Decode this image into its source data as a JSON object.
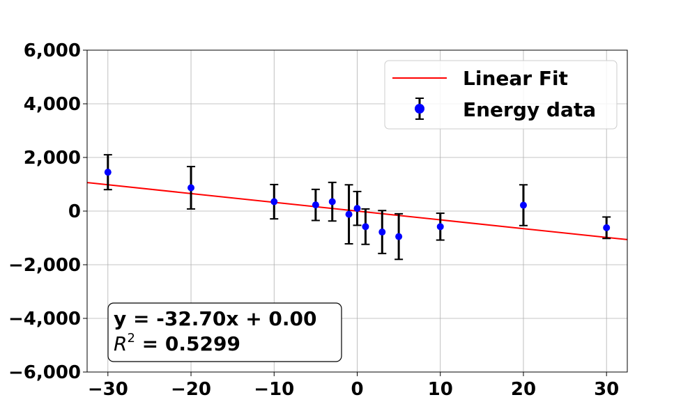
{
  "chart_data": {
    "type": "scatter",
    "title": "",
    "xlabel": "",
    "ylabel": "",
    "xlim": [
      -32.5,
      32.5
    ],
    "ylim": [
      -6000,
      6000
    ],
    "x_ticks": [
      -30,
      -20,
      -10,
      0,
      10,
      20,
      30
    ],
    "x_tick_labels": [
      "−30",
      "−20",
      "−10",
      "0",
      "10",
      "20",
      "30"
    ],
    "y_ticks": [
      -6000,
      -4000,
      -2000,
      0,
      2000,
      4000,
      6000
    ],
    "y_tick_labels": [
      "−6,000",
      "−4,000",
      "−2,000",
      "0",
      "2,000",
      "4,000",
      "6,000"
    ],
    "grid": true,
    "legend_position": "top-right",
    "series": [
      {
        "name": "Energy data",
        "type": "scatter-errorbar",
        "color": "#0000ff",
        "errorbar_color": "#000000",
        "points": [
          {
            "x": -30,
            "y": 1450,
            "err": 650
          },
          {
            "x": -20,
            "y": 870,
            "err": 790
          },
          {
            "x": -10,
            "y": 350,
            "err": 640
          },
          {
            "x": -5,
            "y": 230,
            "err": 580
          },
          {
            "x": -3,
            "y": 350,
            "err": 720
          },
          {
            "x": -1,
            "y": -120,
            "err": 1100
          },
          {
            "x": 0,
            "y": 100,
            "err": 630
          },
          {
            "x": 1,
            "y": -580,
            "err": 660
          },
          {
            "x": 3,
            "y": -780,
            "err": 800
          },
          {
            "x": 5,
            "y": -950,
            "err": 850
          },
          {
            "x": 10,
            "y": -580,
            "err": 500
          },
          {
            "x": 20,
            "y": 220,
            "err": 760
          },
          {
            "x": 30,
            "y": -620,
            "err": 400
          }
        ]
      },
      {
        "name": "Linear Fit",
        "type": "line",
        "color": "#ff0000",
        "slope": -32.7,
        "intercept": 0.0
      }
    ],
    "annotation": {
      "equation": "y = -32.70x + 0.00",
      "r2_symbol": "R",
      "r2_exponent": "2",
      "r2_value": " = 0.5299",
      "position": "bottom-left"
    }
  }
}
